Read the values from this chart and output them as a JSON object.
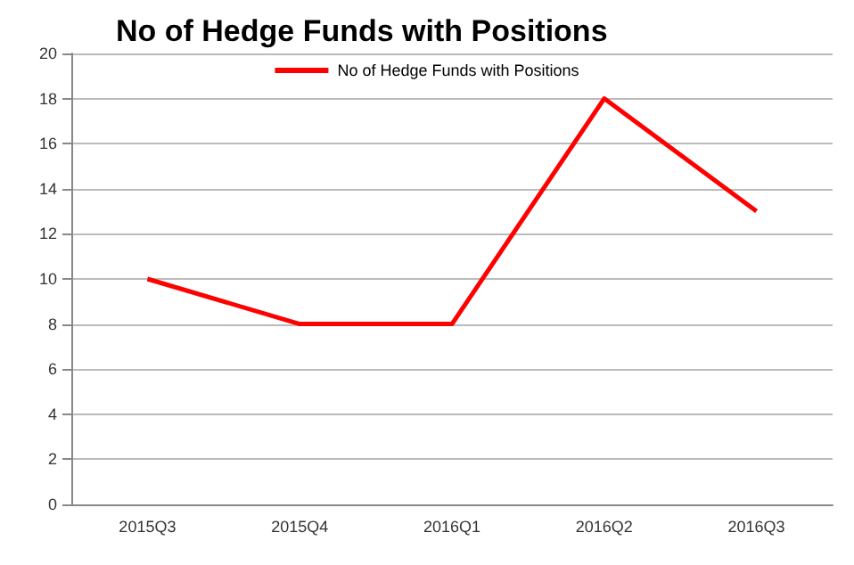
{
  "chart_data": {
    "type": "line",
    "title": "No of Hedge Funds with Positions",
    "categories": [
      "2015Q3",
      "2015Q4",
      "2016Q1",
      "2016Q2",
      "2016Q3"
    ],
    "series": [
      {
        "name": "No of Hedge Funds with Positions",
        "color": "#ff0000",
        "values": [
          10,
          8,
          8,
          18,
          13
        ]
      }
    ],
    "ylim": [
      0,
      20
    ],
    "yticks": [
      0,
      2,
      4,
      6,
      8,
      10,
      12,
      14,
      16,
      18,
      20
    ],
    "grid": "y",
    "legend": "top",
    "marker": "none",
    "line_style": "solid"
  }
}
